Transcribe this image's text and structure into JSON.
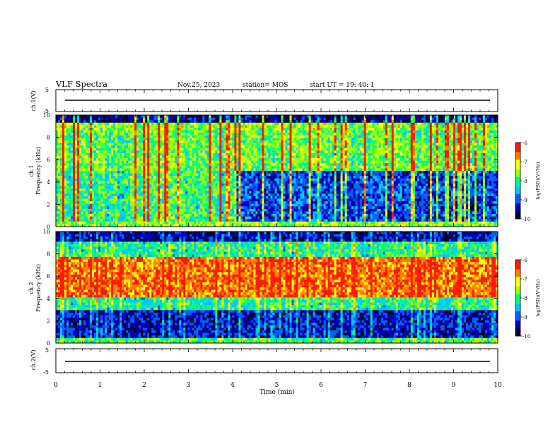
{
  "header": {
    "title": "VLF Spectra",
    "date": "Nov.25, 2023",
    "station": "station= MOS",
    "start": "start  UT =   19: 40: 1"
  },
  "chart_data": [
    {
      "type": "line",
      "panel": "waveform-ch1",
      "ylabel": "ch.1(V)",
      "ylim": [
        -5,
        5
      ],
      "yticks": [
        "5",
        "-5"
      ],
      "x": [
        0,
        10
      ],
      "y": [
        0,
        0
      ]
    },
    {
      "type": "heatmap",
      "panel": "spectrogram-ch1",
      "ylabel_line1": "ch.1",
      "ylabel_line2": "Frequency (kHz)",
      "ylim": [
        0,
        10
      ],
      "yticks": [
        "0",
        "2",
        "4",
        "6",
        "8",
        "10"
      ],
      "colorbar": {
        "label": "log(PSD)(V²/Hz)",
        "range": [
          -10,
          -6
        ],
        "ticks": [
          "-6",
          "-7",
          "-8",
          "-9",
          "-10"
        ]
      }
    },
    {
      "type": "heatmap",
      "panel": "spectrogram-ch2",
      "ylabel_line1": "ch.2",
      "ylabel_line2": "Frequency (kHz)",
      "ylim": [
        0,
        10
      ],
      "yticks": [
        "0",
        "2",
        "4",
        "6",
        "8",
        "10"
      ],
      "colorbar": {
        "label": "log(PSD)(V²/Hz)",
        "range": [
          -10,
          -6
        ],
        "ticks": [
          "-6",
          "-7",
          "-8",
          "-9",
          "-10"
        ]
      }
    },
    {
      "type": "line",
      "panel": "waveform-ch2",
      "ylabel": "ch.2(V)",
      "ylim": [
        -5,
        5
      ],
      "yticks": [
        "5",
        "-5"
      ],
      "x": [
        0,
        10
      ],
      "y": [
        0,
        0
      ]
    }
  ],
  "xaxis": {
    "label": "Time (min)",
    "xlim": [
      0,
      10
    ],
    "ticks": [
      "0",
      "1",
      "2",
      "3",
      "4",
      "5",
      "6",
      "7",
      "8",
      "9",
      "10"
    ]
  },
  "colors": {
    "colormap": [
      "#000033",
      "#0000c0",
      "#0060ff",
      "#00c8ff",
      "#00ff80",
      "#a0ff00",
      "#ffff00",
      "#ff8000",
      "#ff1a00",
      "#ffffff"
    ]
  }
}
